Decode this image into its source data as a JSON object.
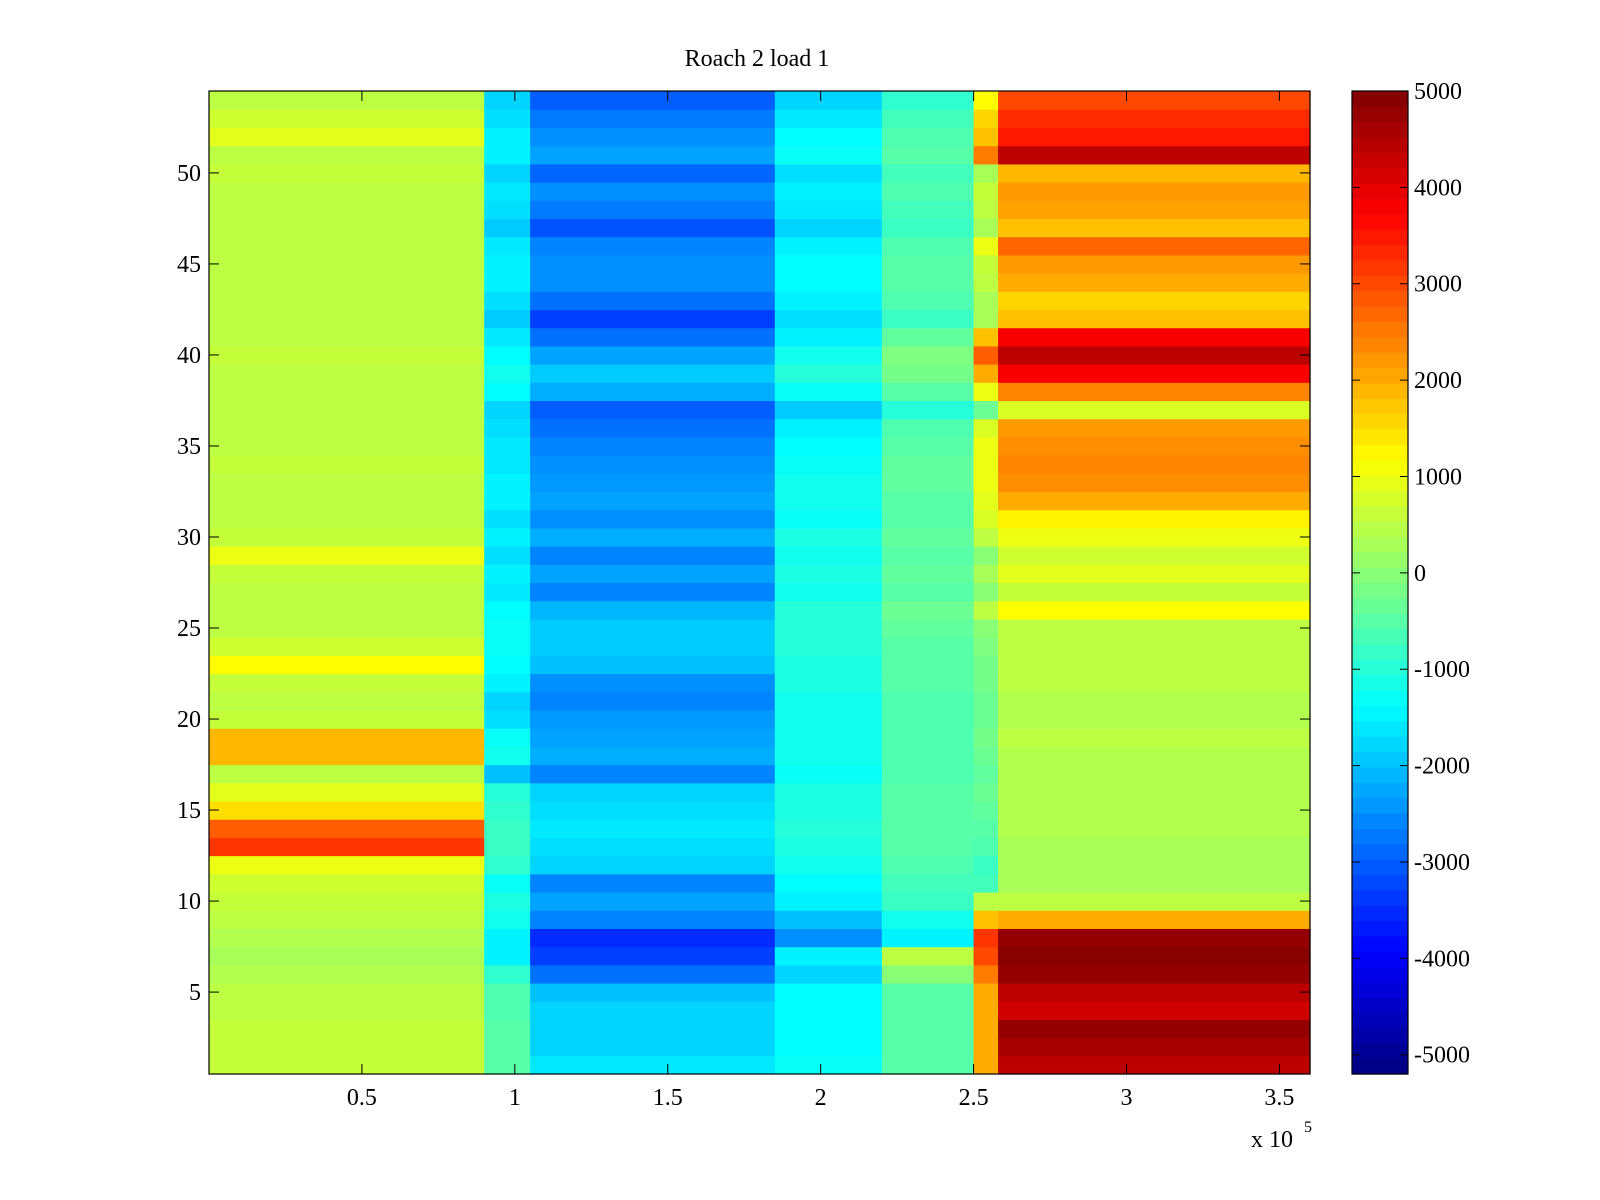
{
  "chart_data": {
    "type": "heatmap",
    "title": "Roach 2 load 1",
    "xlabel": "",
    "ylabel": "",
    "x_multiplier_label": "x 10",
    "x_multiplier_exponent": "5",
    "xlim": [
      0,
      3.6
    ],
    "ylim": [
      0.5,
      54.5
    ],
    "xticks": [
      0.5,
      1,
      1.5,
      2,
      2.5,
      3,
      3.5
    ],
    "xtick_labels": [
      "0.5",
      "1",
      "1.5",
      "2",
      "2.5",
      "3",
      "3.5"
    ],
    "yticks": [
      5,
      10,
      15,
      20,
      25,
      30,
      35,
      40,
      45,
      50
    ],
    "ytick_labels": [
      "5",
      "10",
      "15",
      "20",
      "25",
      "30",
      "35",
      "40",
      "45",
      "50"
    ],
    "colorbar": {
      "colormap": "jet",
      "clim": [
        -5200,
        5000
      ],
      "ticks": [
        5000,
        4000,
        3000,
        2000,
        1000,
        0,
        -1000,
        -2000,
        -3000,
        -4000,
        -5000
      ],
      "tick_labels": [
        "5000",
        "4000",
        "3000",
        "2000",
        "1000",
        "0",
        "-1000",
        "-2000",
        "-3000",
        "-4000",
        "-5000"
      ]
    },
    "x_segments": [
      {
        "from": 0.0,
        "to": 0.9
      },
      {
        "from": 0.9,
        "to": 1.05
      },
      {
        "from": 1.05,
        "to": 1.85
      },
      {
        "from": 1.85,
        "to": 2.2
      },
      {
        "from": 2.2,
        "to": 2.5
      },
      {
        "from": 2.5,
        "to": 2.58
      },
      {
        "from": 2.58,
        "to": 3.6
      }
    ],
    "rows": [
      {
        "y": 1,
        "values": [
          600,
          -500,
          -1600,
          -1300,
          -500,
          2000,
          4400
        ]
      },
      {
        "y": 2,
        "values": [
          600,
          -500,
          -1800,
          -1400,
          -500,
          2000,
          4600
        ]
      },
      {
        "y": 3,
        "values": [
          600,
          -500,
          -1800,
          -1400,
          -500,
          2000,
          4800
        ]
      },
      {
        "y": 4,
        "values": [
          500,
          -600,
          -1800,
          -1400,
          -500,
          2000,
          4200
        ]
      },
      {
        "y": 5,
        "values": [
          500,
          -600,
          -2000,
          -1400,
          -500,
          2000,
          4400
        ]
      },
      {
        "y": 6,
        "values": [
          400,
          -900,
          -2800,
          -1800,
          0,
          2500,
          4800
        ]
      },
      {
        "y": 7,
        "values": [
          300,
          -1500,
          -3300,
          -1500,
          500,
          3000,
          4900
        ]
      },
      {
        "y": 8,
        "values": [
          400,
          -1500,
          -3500,
          -2500,
          -1500,
          3200,
          4800
        ]
      },
      {
        "y": 9,
        "values": [
          500,
          -1200,
          -2600,
          -2000,
          -1200,
          1800,
          2000
        ]
      },
      {
        "y": 10,
        "values": [
          600,
          -1100,
          -2300,
          -1500,
          -800,
          500,
          500
        ]
      },
      {
        "y": 11,
        "values": [
          700,
          -1300,
          -2600,
          -1400,
          -700,
          -700,
          300
        ]
      },
      {
        "y": 12,
        "values": [
          1000,
          -900,
          -1800,
          -1200,
          -600,
          -800,
          300
        ]
      },
      {
        "y": 13,
        "values": [
          3200,
          -800,
          -1700,
          -1100,
          -500,
          -600,
          300
        ]
      },
      {
        "y": 14,
        "values": [
          2800,
          -800,
          -1600,
          -1000,
          -500,
          -500,
          400
        ]
      },
      {
        "y": 15,
        "values": [
          1500,
          -900,
          -1700,
          -1100,
          -500,
          -400,
          400
        ]
      },
      {
        "y": 16,
        "values": [
          900,
          -1000,
          -1800,
          -1100,
          -500,
          -300,
          400
        ]
      },
      {
        "y": 17,
        "values": [
          500,
          -2000,
          -2600,
          -1300,
          -600,
          -400,
          400
        ]
      },
      {
        "y": 18,
        "values": [
          1900,
          -1200,
          -2200,
          -1200,
          -600,
          -300,
          400
        ]
      },
      {
        "y": 19,
        "values": [
          1900,
          -1300,
          -2300,
          -1200,
          -600,
          -200,
          500
        ]
      },
      {
        "y": 20,
        "values": [
          600,
          -1700,
          -2400,
          -1200,
          -600,
          -300,
          400
        ]
      },
      {
        "y": 21,
        "values": [
          500,
          -1800,
          -2600,
          -1200,
          -600,
          -300,
          400
        ]
      },
      {
        "y": 22,
        "values": [
          600,
          -1500,
          -2500,
          -1100,
          -500,
          -200,
          500
        ]
      },
      {
        "y": 23,
        "values": [
          1200,
          -1400,
          -2000,
          -1100,
          -500,
          -200,
          500
        ]
      },
      {
        "y": 24,
        "values": [
          700,
          -1300,
          -1900,
          -1000,
          -500,
          -100,
          500
        ]
      },
      {
        "y": 25,
        "values": [
          500,
          -1300,
          -1900,
          -1000,
          -400,
          0,
          500
        ]
      },
      {
        "y": 26,
        "values": [
          500,
          -1400,
          -2100,
          -1000,
          -300,
          500,
          1200
        ]
      },
      {
        "y": 27,
        "values": [
          500,
          -1600,
          -2600,
          -1200,
          -500,
          0,
          600
        ]
      },
      {
        "y": 28,
        "values": [
          600,
          -1500,
          -2300,
          -1100,
          -400,
          300,
          900
        ]
      },
      {
        "y": 29,
        "values": [
          1000,
          -1700,
          -2600,
          -1200,
          -500,
          0,
          700
        ]
      },
      {
        "y": 30,
        "values": [
          600,
          -1500,
          -2200,
          -1100,
          -400,
          500,
          1000
        ]
      },
      {
        "y": 31,
        "values": [
          500,
          -1700,
          -2500,
          -1300,
          -500,
          800,
          1300
        ]
      },
      {
        "y": 32,
        "values": [
          500,
          -1500,
          -2300,
          -1200,
          -500,
          900,
          2000
        ]
      },
      {
        "y": 33,
        "values": [
          500,
          -1500,
          -2400,
          -1200,
          -400,
          1000,
          2300
        ]
      },
      {
        "y": 34,
        "values": [
          600,
          -1600,
          -2500,
          -1300,
          -400,
          1000,
          2400
        ]
      },
      {
        "y": 35,
        "values": [
          500,
          -1600,
          -2600,
          -1400,
          -500,
          1000,
          2300
        ]
      },
      {
        "y": 36,
        "values": [
          500,
          -1700,
          -2800,
          -1500,
          -600,
          800,
          2200
        ]
      },
      {
        "y": 37,
        "values": [
          500,
          -1800,
          -3000,
          -1900,
          -1000,
          -300,
          800
        ]
      },
      {
        "y": 38,
        "values": [
          500,
          -1400,
          -2200,
          -1300,
          -500,
          1000,
          2400
        ]
      },
      {
        "y": 39,
        "values": [
          500,
          -1200,
          -1900,
          -1000,
          -200,
          2000,
          3800
        ]
      },
      {
        "y": 40,
        "values": [
          600,
          -1400,
          -2300,
          -1200,
          -100,
          2800,
          4400
        ]
      },
      {
        "y": 41,
        "values": [
          500,
          -1600,
          -2800,
          -1500,
          -400,
          1800,
          3800
        ]
      },
      {
        "y": 42,
        "values": [
          500,
          -1900,
          -3300,
          -1700,
          -800,
          300,
          1800
        ]
      },
      {
        "y": 43,
        "values": [
          500,
          -1700,
          -2800,
          -1500,
          -600,
          300,
          1600
        ]
      },
      {
        "y": 44,
        "values": [
          500,
          -1500,
          -2500,
          -1400,
          -500,
          500,
          2000
        ]
      },
      {
        "y": 45,
        "values": [
          500,
          -1500,
          -2500,
          -1400,
          -500,
          600,
          2200
        ]
      },
      {
        "y": 46,
        "values": [
          500,
          -1600,
          -2600,
          -1500,
          -600,
          1000,
          2700
        ]
      },
      {
        "y": 47,
        "values": [
          500,
          -1900,
          -3100,
          -1800,
          -800,
          300,
          1800
        ]
      },
      {
        "y": 48,
        "values": [
          500,
          -1700,
          -2700,
          -1600,
          -700,
          500,
          2100
        ]
      },
      {
        "y": 49,
        "values": [
          500,
          -1600,
          -2500,
          -1500,
          -600,
          600,
          2200
        ]
      },
      {
        "y": 50,
        "values": [
          600,
          -1800,
          -2900,
          -1700,
          -700,
          300,
          1900
        ]
      },
      {
        "y": 51,
        "values": [
          500,
          -1500,
          -2300,
          -1300,
          -500,
          2500,
          4400
        ]
      },
      {
        "y": 52,
        "values": [
          900,
          -1500,
          -2500,
          -1400,
          -600,
          1800,
          3500
        ]
      },
      {
        "y": 53,
        "values": [
          700,
          -1700,
          -2700,
          -1600,
          -700,
          1600,
          3300
        ]
      },
      {
        "y": 54,
        "values": [
          500,
          -1800,
          -3000,
          -1800,
          -900,
          1200,
          3000
        ]
      }
    ]
  }
}
